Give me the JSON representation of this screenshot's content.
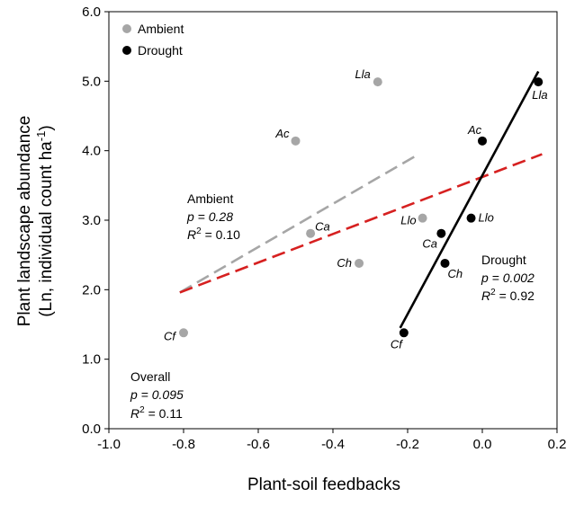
{
  "chart_data": {
    "type": "scatter",
    "xlabel": "Plant-soil feedbacks",
    "ylabel_line1": "Plant landscape abundance",
    "ylabel_line2_pre": "(Ln, individual count ha",
    "ylabel_line2_sup": "-1",
    "ylabel_line2_post": ")",
    "xlim": [
      -1.0,
      0.2
    ],
    "ylim": [
      0.0,
      6.0
    ],
    "xticks": [
      "-1.0",
      "-0.8",
      "-0.6",
      "-0.4",
      "-0.2",
      "0.0",
      "0.2"
    ],
    "yticks": [
      "0.0",
      "1.0",
      "2.0",
      "3.0",
      "4.0",
      "5.0",
      "6.0"
    ],
    "legend_position": "top-left",
    "series": [
      {
        "name": "Ambient",
        "color": "#a6a6a6",
        "points": [
          {
            "label": "Lla",
            "x": -0.28,
            "y": 4.99
          },
          {
            "label": "Ac",
            "x": -0.5,
            "y": 4.14
          },
          {
            "label": "Ca",
            "x": -0.46,
            "y": 2.81
          },
          {
            "label": "Llo",
            "x": -0.16,
            "y": 3.03
          },
          {
            "label": "Ch",
            "x": -0.33,
            "y": 2.38
          },
          {
            "label": "Cf",
            "x": -0.8,
            "y": 1.38
          }
        ]
      },
      {
        "name": "Drought",
        "color": "#000000",
        "points": [
          {
            "label": "Lla",
            "x": 0.15,
            "y": 4.99
          },
          {
            "label": "Ac",
            "x": 0.0,
            "y": 4.14
          },
          {
            "label": "Llo",
            "x": -0.03,
            "y": 3.03
          },
          {
            "label": "Ca",
            "x": -0.11,
            "y": 2.81
          },
          {
            "label": "Ch",
            "x": -0.1,
            "y": 2.38
          },
          {
            "label": "Cf",
            "x": -0.21,
            "y": 1.38
          }
        ]
      }
    ],
    "fit_lines": [
      {
        "group": "Ambient",
        "color": "#a6a6a6",
        "style": "dashed",
        "x": [
          -0.81,
          -0.18
        ],
        "y": [
          1.96,
          3.92
        ]
      },
      {
        "group": "Overall",
        "color": "#d62020",
        "style": "dashed",
        "x": [
          -0.81,
          0.16
        ],
        "y": [
          1.96,
          3.95
        ]
      },
      {
        "group": "Drought",
        "color": "#000000",
        "style": "solid",
        "x": [
          -0.22,
          0.15
        ],
        "y": [
          1.45,
          5.14
        ]
      }
    ],
    "annotations": {
      "ambient": {
        "name": "Ambient",
        "p": "p = 0.28",
        "r2_pre": "R",
        "r2_sup": "2",
        "r2_post": " = 0.10"
      },
      "drought": {
        "name": "Drought",
        "p": "p = 0.002",
        "r2_pre": "R",
        "r2_sup": "2",
        "r2_post": " = 0.92"
      },
      "overall": {
        "name": "Overall",
        "p": "p = 0.095",
        "r2_pre": "R",
        "r2_sup": "2",
        "r2_post": " = 0.11"
      }
    }
  }
}
